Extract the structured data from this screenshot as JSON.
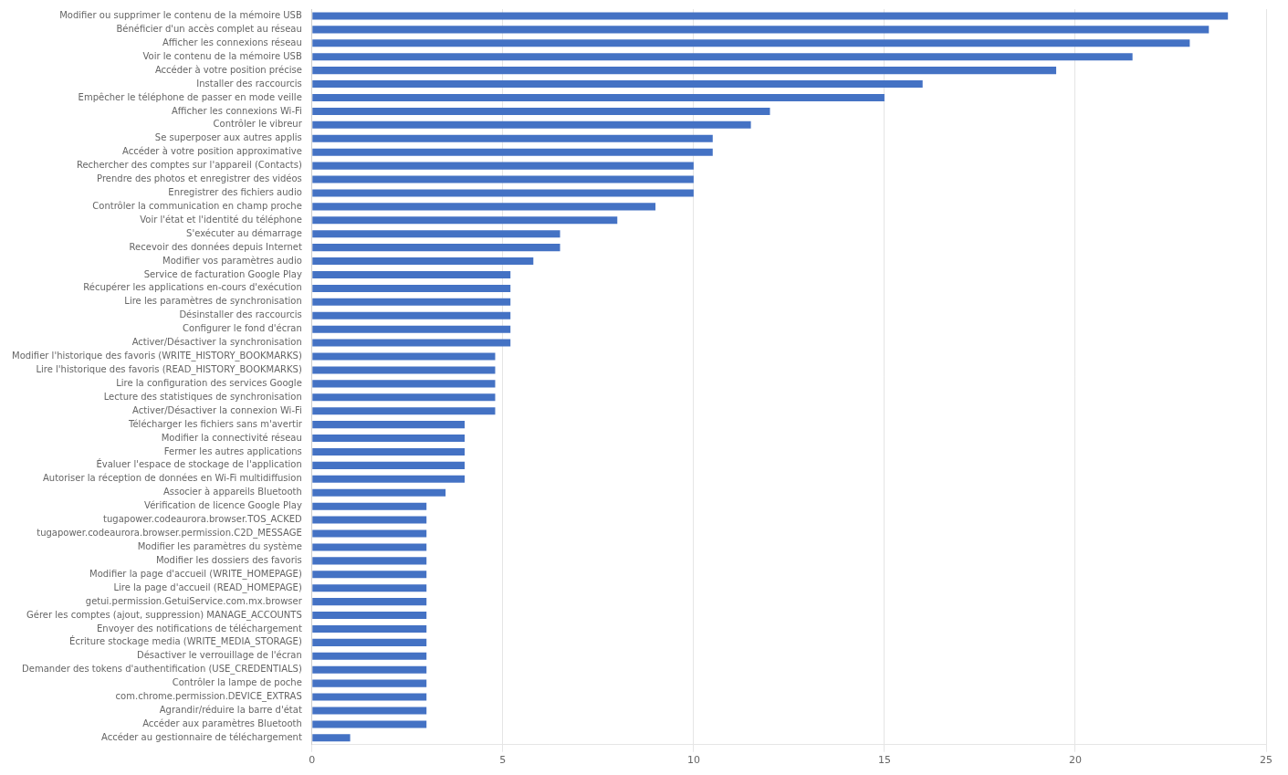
{
  "chart_data": {
    "type": "bar",
    "orientation": "horizontal",
    "categories": [
      "Modifier ou supprimer le contenu de la mémoire USB",
      "Bénéficier d'un accès complet au réseau",
      "Afficher les connexions réseau",
      "Voir le contenu de la mémoire USB",
      "Accéder à votre position précise",
      "Installer des raccourcis",
      "Empêcher le téléphone de passer en mode veille",
      "Afficher les connexions Wi-Fi",
      "Contrôler le vibreur",
      "Se superposer aux autres applis",
      "Accéder à votre position approximative",
      "Rechercher des comptes sur l'appareil (Contacts)",
      "Prendre des photos et enregistrer des vidéos",
      "Enregistrer des fichiers audio",
      "Contrôler la communication en champ proche",
      "Voir l'état et l'identité du téléphone",
      "S'exécuter au démarrage",
      "Recevoir des données depuis Internet",
      "Modifier vos paramètres audio",
      "Service de facturation Google Play",
      "Récupérer les applications en-cours d'exécution",
      "Lire les paramètres de synchronisation",
      "Désinstaller des raccourcis",
      "Configurer le fond d'écran",
      "Activer/Désactiver la synchronisation",
      "Modifier l'historique des favoris (WRITE_HISTORY_BOOKMARKS)",
      "Lire l'historique des favoris (READ_HISTORY_BOOKMARKS)",
      "Lire la configuration des services Google",
      "Lecture des statistiques de synchronisation",
      "Activer/Désactiver la connexion Wi-Fi",
      "Télécharger les fichiers sans m'avertir",
      "Modifier la connectivité réseau",
      "Fermer les autres applications",
      "Évaluer l'espace de stockage de l'application",
      "Autoriser la réception de données en Wi-Fi multidiffusion",
      "Associer à appareils Bluetooth",
      "Vérification de licence Google Play",
      "tugapower.codeaurora.browser.TOS_ACKED",
      "tugapower.codeaurora.browser.permission.C2D_MESSAGE",
      "Modifier les paramètres du système",
      "Modifier les dossiers des favoris",
      "Modifier la page d'accueil (WRITE_HOMEPAGE)",
      "Lire la page d'accueil (READ_HOMEPAGE)",
      "getui.permission.GetuiService.com.mx.browser",
      "Gérer les comptes (ajout, suppression) MANAGE_ACCOUNTS",
      "Envoyer des notifications de téléchargement",
      "Écriture stockage media (WRITE_MEDIA_STORAGE)",
      "Désactiver le verrouillage de l'écran",
      "Demander des tokens d'authentification (USE_CREDENTIALS)",
      "Contrôler la lampe de poche",
      "com.chrome.permission.DEVICE_EXTRAS",
      "Agrandir/réduire la barre d'état",
      "Accéder aux paramètres Bluetooth",
      "Accéder au gestionnaire de téléchargement"
    ],
    "values": [
      24.0,
      23.5,
      23.0,
      21.5,
      19.5,
      16.0,
      15.0,
      12.0,
      11.5,
      10.5,
      10.5,
      10.0,
      10.0,
      10.0,
      9.0,
      8.0,
      6.5,
      6.5,
      5.8,
      5.2,
      5.2,
      5.2,
      5.2,
      5.2,
      5.2,
      4.8,
      4.8,
      4.8,
      4.8,
      4.8,
      4.0,
      4.0,
      4.0,
      4.0,
      4.0,
      3.5,
      3.0,
      3.0,
      3.0,
      3.0,
      3.0,
      3.0,
      3.0,
      3.0,
      3.0,
      3.0,
      3.0,
      3.0,
      3.0,
      3.0,
      3.0,
      3.0,
      3.0,
      1.0
    ],
    "color": "#4472C4",
    "xlim": [
      0,
      25
    ],
    "xticks": [
      0,
      5,
      10,
      15,
      20,
      25
    ],
    "grid": true
  }
}
